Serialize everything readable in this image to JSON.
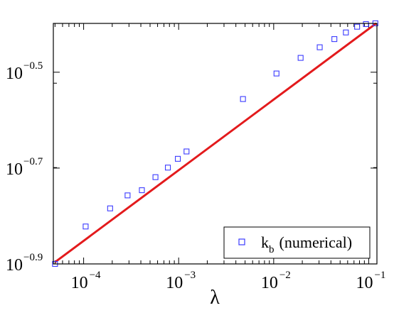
{
  "chart_data": {
    "type": "scatter",
    "title": "",
    "xlabel": "λ",
    "ylabel": "",
    "x_scale": "log",
    "y_scale": "log",
    "xlim": [
      4.8e-05,
      0.122
    ],
    "ylim": [
      0.1259,
      0.3998
    ],
    "grid": false,
    "legend_position": "bottom-right",
    "x_ticks": [
      {
        "value": 0.0001,
        "base": "10",
        "exponent": "−4"
      },
      {
        "value": 0.001,
        "base": "10",
        "exponent": "−3"
      },
      {
        "value": 0.01,
        "base": "10",
        "exponent": "−2"
      },
      {
        "value": 0.1,
        "base": "10",
        "exponent": "−1"
      }
    ],
    "y_ticks": [
      {
        "value": 0.12589,
        "base": "10",
        "exponent": "−0.9"
      },
      {
        "value": 0.19953,
        "base": "10",
        "exponent": "−0.7"
      },
      {
        "value": 0.31623,
        "base": "10",
        "exponent": "−0.5"
      }
    ],
    "series": [
      {
        "name": "k_b (numerical)",
        "legend_label": {
          "main": "k",
          "subscript": "b",
          "suffix": "(numerical)"
        },
        "kind": "markers",
        "marker": "square",
        "color": "#3b3bff",
        "x": [
          5e-05,
          0.000105,
          0.00019,
          0.00029,
          0.00041,
          0.00057,
          0.00077,
          0.00098,
          0.00121,
          0.00475,
          0.0107,
          0.0192,
          0.0305,
          0.0435,
          0.0575,
          0.0755,
          0.0935,
          0.1175
        ],
        "y": [
          0.1259,
          0.1507,
          0.1644,
          0.175,
          0.1794,
          0.191,
          0.2,
          0.2086,
          0.2161,
          0.278,
          0.3143,
          0.3388,
          0.3565,
          0.3708,
          0.3828,
          0.3935,
          0.3985,
          0.4
        ]
      },
      {
        "name": "",
        "kind": "line",
        "color": "#e31a1c",
        "x": [
          5e-05,
          0.12
        ],
        "y": [
          0.127,
          0.4
        ]
      }
    ]
  }
}
